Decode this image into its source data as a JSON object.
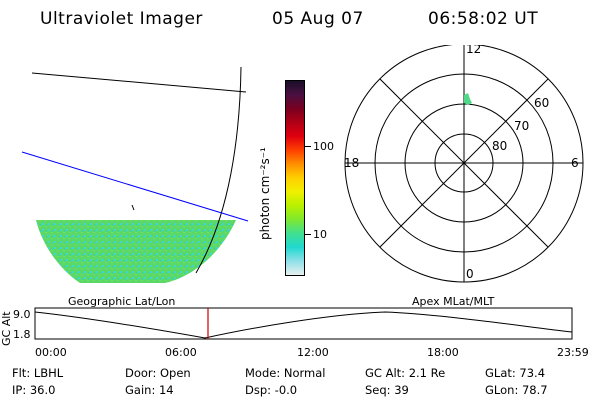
{
  "header": {
    "title": "Ultraviolet Imager",
    "date": "05 Aug 07",
    "time": "06:58:02 UT"
  },
  "colorbar": {
    "label": "photon cm⁻²s⁻¹",
    "ticks": [
      "100",
      "10"
    ],
    "colors": [
      "#1a0f2a",
      "#4a1040",
      "#7a0020",
      "#b00015",
      "#e0000f",
      "#ff4000",
      "#ff9000",
      "#ffd000",
      "#f0f000",
      "#b8f000",
      "#80e830",
      "#40e090",
      "#20d8d0",
      "#90e0e8",
      "#e8f0f0"
    ]
  },
  "left_panel": {
    "caption": "Geographic Lat/Lon",
    "swath_colors": [
      "#5bd86a",
      "#3ed8c8",
      "#78e050"
    ],
    "line_colors": {
      "grid": "#000000",
      "terminator": "#0000ff"
    }
  },
  "polar_plot": {
    "caption": "Apex MLat/MLT",
    "mlt_labels": [
      "12",
      "18",
      "6",
      "0"
    ],
    "lat_labels": [
      "60",
      "70",
      "80"
    ],
    "spot_color": "#4fd888"
  },
  "altitude_plot": {
    "ylabel": "GC Alt",
    "yticks": [
      "9.0",
      "1.8"
    ],
    "xticks": [
      "00:00",
      "06:00",
      "12:00",
      "18:00",
      "23:59"
    ],
    "marker_color": "#cc0000"
  },
  "status": {
    "flt": "Flt: LBHL",
    "ip": "IP: 36.0",
    "door": "Door: Open",
    "gain": "Gain: 14",
    "mode": "Mode: Normal",
    "dsp": "Dsp:   -0.0",
    "gc_alt": "GC Alt: 2.1 Re",
    "seq": "Seq: 39",
    "glat": "GLat:   73.4",
    "glon": "GLon:   78.7"
  }
}
